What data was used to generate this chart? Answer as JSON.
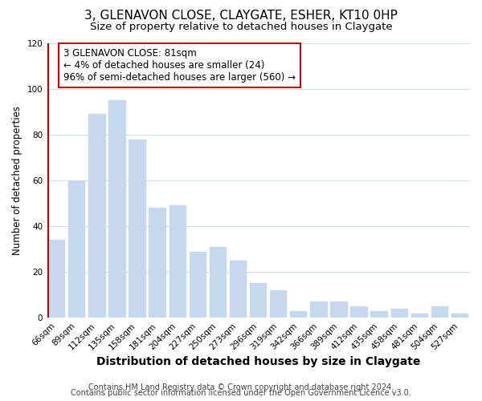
{
  "title": "3, GLENAVON CLOSE, CLAYGATE, ESHER, KT10 0HP",
  "subtitle": "Size of property relative to detached houses in Claygate",
  "xlabel": "Distribution of detached houses by size in Claygate",
  "ylabel": "Number of detached properties",
  "bar_labels": [
    "66sqm",
    "89sqm",
    "112sqm",
    "135sqm",
    "158sqm",
    "181sqm",
    "204sqm",
    "227sqm",
    "250sqm",
    "273sqm",
    "296sqm",
    "319sqm",
    "342sqm",
    "366sqm",
    "389sqm",
    "412sqm",
    "435sqm",
    "458sqm",
    "481sqm",
    "504sqm",
    "527sqm"
  ],
  "bar_values": [
    34,
    60,
    89,
    95,
    78,
    48,
    49,
    29,
    31,
    25,
    15,
    12,
    3,
    7,
    7,
    5,
    3,
    4,
    2,
    5,
    2
  ],
  "bar_color": "#c5d8ed",
  "highlight_line_color": "#cc0000",
  "annotation_text": "3 GLENAVON CLOSE: 81sqm\n← 4% of detached houses are smaller (24)\n96% of semi-detached houses are larger (560) →",
  "annotation_box_facecolor": "#ffffff",
  "annotation_box_edgecolor": "#cc0000",
  "ylim": [
    0,
    120
  ],
  "yticks": [
    0,
    20,
    40,
    60,
    80,
    100,
    120
  ],
  "footer_line1": "Contains HM Land Registry data © Crown copyright and database right 2024.",
  "footer_line2": "Contains public sector information licensed under the Open Government Licence v3.0.",
  "bg_color": "#ffffff",
  "plot_bg_color": "#ffffff",
  "grid_color": "#d0dce8",
  "title_fontsize": 11,
  "subtitle_fontsize": 9.5,
  "xlabel_fontsize": 10,
  "ylabel_fontsize": 8.5,
  "tick_fontsize": 7.5,
  "annotation_fontsize": 8.5,
  "footer_fontsize": 7
}
